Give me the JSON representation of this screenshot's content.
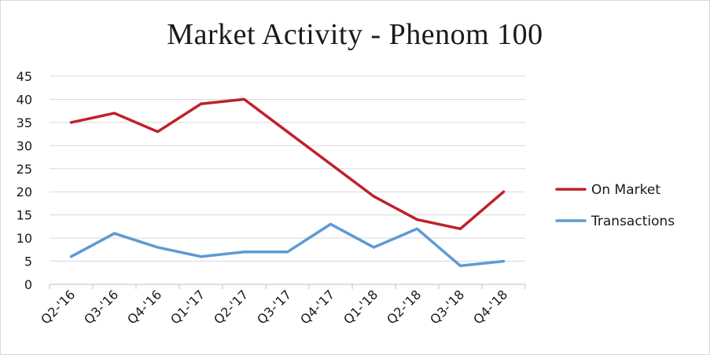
{
  "chart_data": {
    "type": "line",
    "title": "Market Activity - Phenom 100",
    "xlabel": "",
    "ylabel": "",
    "categories": [
      "Q2-'16",
      "Q3-'16",
      "Q4-'16",
      "Q1-'17",
      "Q2-'17",
      "Q3-'17",
      "Q4-'17",
      "Q1-'18",
      "Q2-'18",
      "Q3-'18",
      "Q4-'18"
    ],
    "ylim": [
      0,
      45
    ],
    "yticks": [
      0,
      5,
      10,
      15,
      20,
      25,
      30,
      35,
      40,
      45
    ],
    "grid": true,
    "legend_position": "right",
    "series": [
      {
        "name": "On Market",
        "color": "#c0202c",
        "values": [
          35,
          37,
          33,
          39,
          40,
          33,
          26,
          19,
          14,
          12,
          20
        ]
      },
      {
        "name": "Transactions",
        "color": "#5b9bd5",
        "values": [
          6,
          11,
          8,
          6,
          7,
          7,
          13,
          8,
          12,
          4,
          5
        ]
      }
    ]
  }
}
